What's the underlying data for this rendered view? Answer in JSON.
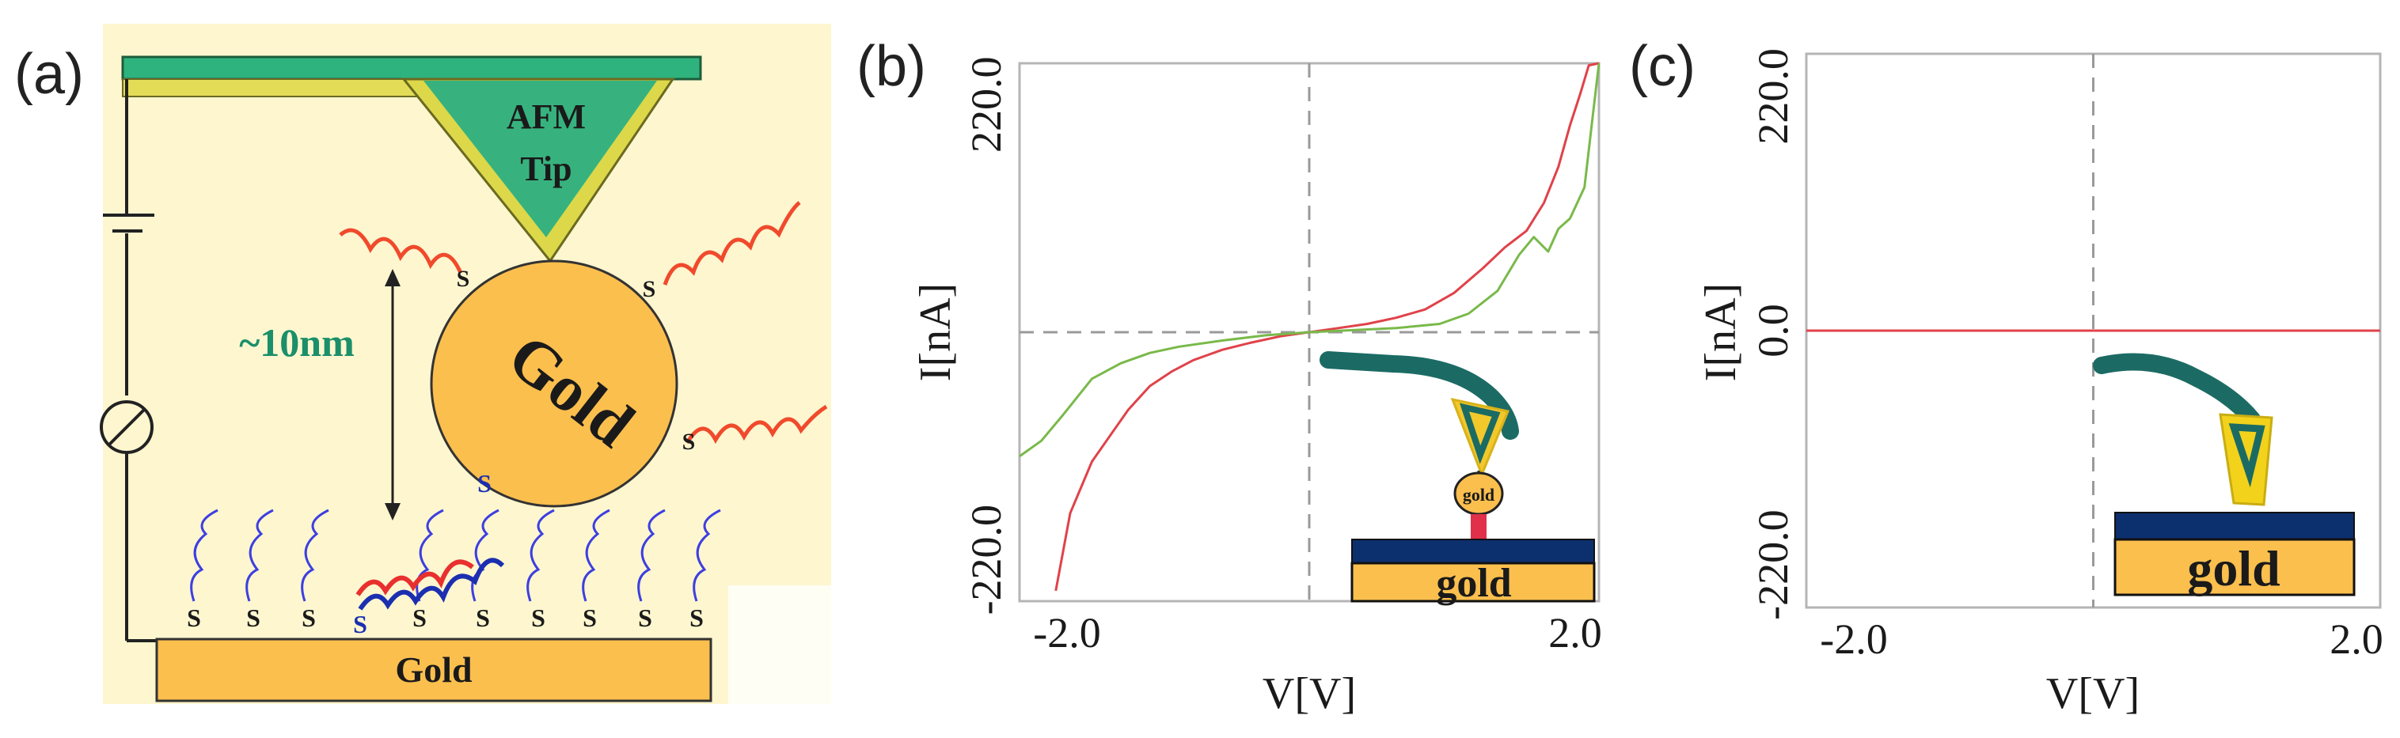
{
  "panel_labels": [
    "(a)",
    "(b)",
    "(c)"
  ],
  "schematic": {
    "tip_label_line1": "AFM",
    "tip_label_line2": "Tip",
    "particle_label": "Gold",
    "substrate_label": "Gold",
    "distance_label": "~10nm",
    "sulfur_symbol": "S"
  },
  "insets": {
    "b_particle_label": "gold",
    "b_substrate_label": "gold",
    "c_substrate_label": "gold"
  },
  "colors": {
    "schematic_bg": "#fdf6cf",
    "cantilever": "#2fb37e",
    "cantilever_edge": "#c8c83a",
    "gold": "#fbbf4e",
    "red_curve": "#e0424a",
    "green_curve": "#79b94a",
    "teal": "#1b6b64",
    "navy": "#0c2f6e",
    "linker": "#e0304a",
    "tip_yellow": "#f2d21b"
  },
  "chart_data": [
    {
      "type": "line",
      "panel": "(b)",
      "xlabel": "V[V]",
      "ylabel": "I[nA]",
      "xlim": [
        -2.0,
        2.0
      ],
      "ylim": [
        -260,
        260
      ],
      "x_ticks": [
        -2.0,
        2.0
      ],
      "x_tick_labels": [
        "-2.0",
        "2.0"
      ],
      "y_ticks": [
        220,
        -220
      ],
      "y_tick_labels": [
        "220.0",
        "-220.0"
      ],
      "series": [
        {
          "name": "red",
          "color": "#e0424a",
          "x": [
            -1.75,
            -1.65,
            -1.5,
            -1.35,
            -1.25,
            -1.1,
            -0.95,
            -0.8,
            -0.6,
            -0.4,
            -0.2,
            0.0,
            0.2,
            0.4,
            0.6,
            0.8,
            1.0,
            1.2,
            1.35,
            1.5,
            1.62,
            1.72,
            1.8,
            1.87,
            1.93,
            2.0
          ],
          "y": [
            -250,
            -175,
            -125,
            -95,
            -75,
            -52,
            -38,
            -27,
            -17,
            -10,
            -4,
            0,
            4,
            8,
            14,
            22,
            38,
            62,
            82,
            98,
            125,
            160,
            200,
            230,
            258,
            262
          ]
        },
        {
          "name": "green",
          "color": "#79b94a",
          "x": [
            -2.0,
            -1.85,
            -1.7,
            -1.5,
            -1.3,
            -1.1,
            -0.9,
            -0.6,
            -0.3,
            0.0,
            0.3,
            0.6,
            0.9,
            1.1,
            1.3,
            1.45,
            1.55,
            1.65,
            1.72,
            1.8,
            1.9,
            1.95,
            2.0
          ],
          "y": [
            -120,
            -105,
            -80,
            -45,
            -30,
            -20,
            -14,
            -8,
            -3,
            0,
            2,
            4,
            8,
            18,
            40,
            75,
            92,
            78,
            100,
            110,
            140,
            200,
            260
          ]
        }
      ]
    },
    {
      "type": "line",
      "panel": "(c)",
      "xlabel": "V[V]",
      "ylabel": "I[nA]",
      "xlim": [
        -2.0,
        2.0
      ],
      "ylim": [
        -260,
        260
      ],
      "x_ticks": [
        -2.0,
        2.0
      ],
      "x_tick_labels": [
        "-2.0",
        "2.0"
      ],
      "y_ticks": [
        220,
        0,
        -220
      ],
      "y_tick_labels": [
        "220.0",
        "0.0",
        "-220.0"
      ],
      "series": [
        {
          "name": "red",
          "color": "#e0424a",
          "x": [
            -2.0,
            2.0
          ],
          "y": [
            0,
            0
          ]
        }
      ]
    }
  ]
}
